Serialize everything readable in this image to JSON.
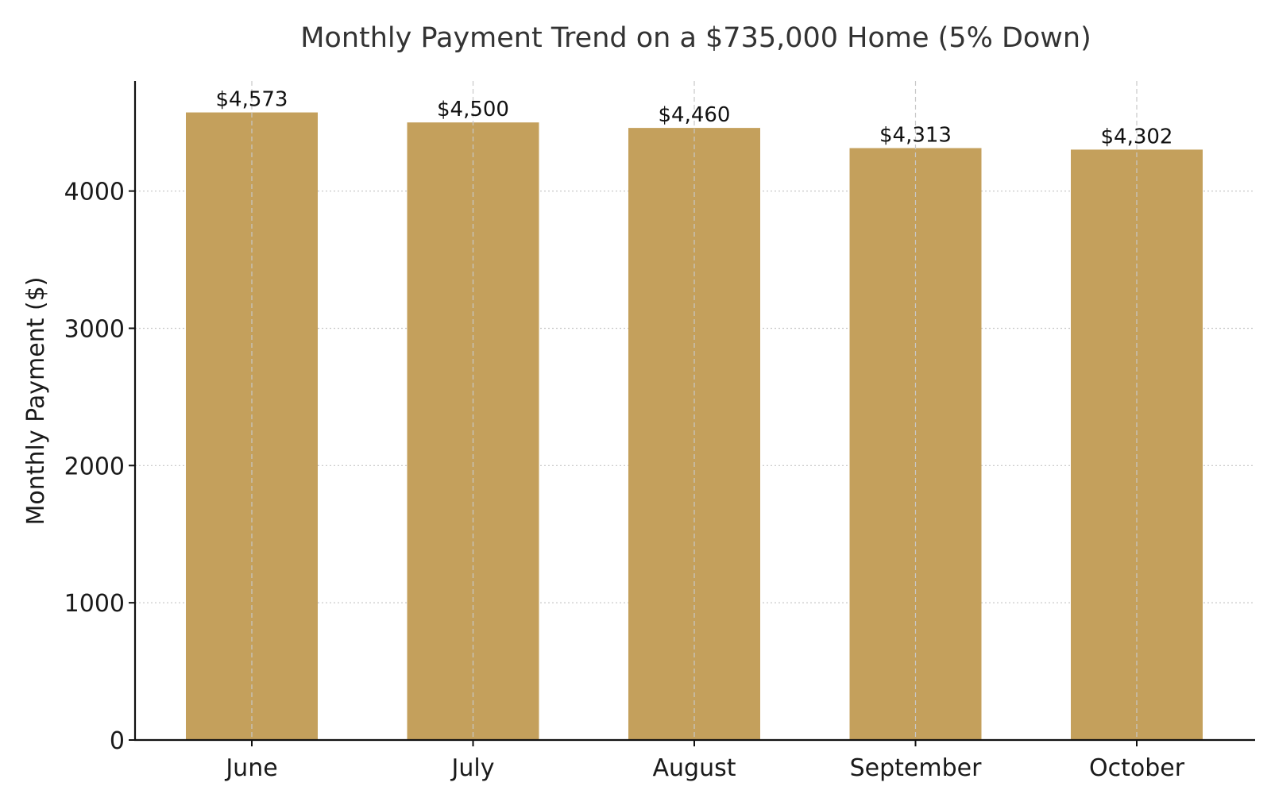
{
  "colors": {
    "bar": "#c4a05c",
    "axis": "#111111",
    "grid": "#c8c8c8",
    "title": "#333333",
    "text": "#1a1a1a"
  },
  "chart_data": {
    "type": "bar",
    "title": "Monthly Payment Trend on a $735,000 Home (5% Down)",
    "xlabel": "",
    "ylabel": "Monthly Payment ($)",
    "categories": [
      "June",
      "July",
      "August",
      "September",
      "October"
    ],
    "values": [
      4573,
      4500,
      4460,
      4313,
      4302
    ],
    "data_labels": [
      "$4,573",
      "$4,500",
      "$4,460",
      "$4,313",
      "$4,302"
    ],
    "yticks": [
      0,
      1000,
      2000,
      3000,
      4000
    ],
    "ytick_labels": [
      "0",
      "1000",
      "2000",
      "3000",
      "4000"
    ],
    "ylim": [
      0,
      4802
    ],
    "grid": true,
    "legend": "none"
  }
}
